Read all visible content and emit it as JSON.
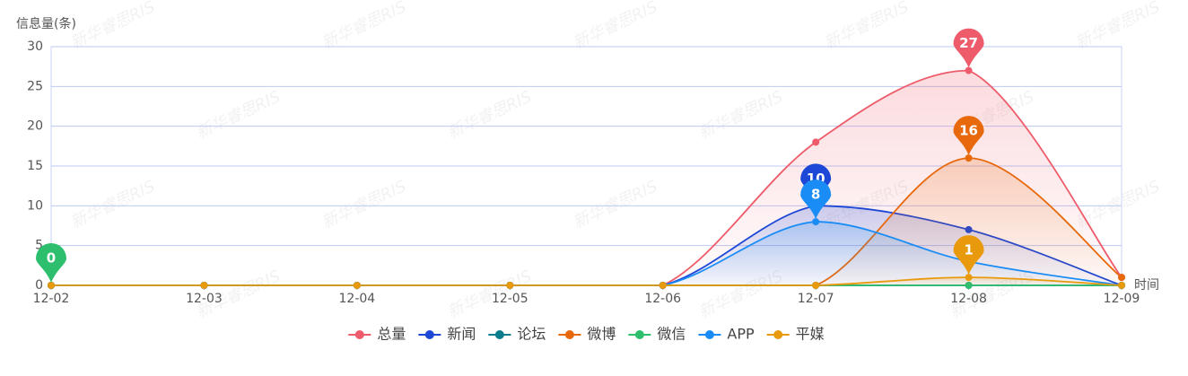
{
  "chart_data": {
    "type": "line",
    "smooth": true,
    "area": true,
    "y_axis_label": "信息量(条)",
    "x_axis_label": "时间",
    "watermark": "新华睿思RIS",
    "categories": [
      "12-02",
      "12-03",
      "12-04",
      "12-05",
      "12-06",
      "12-07",
      "12-08",
      "12-09"
    ],
    "ylim": [
      0,
      30
    ],
    "yticks": [
      0,
      5,
      10,
      15,
      20,
      25,
      30
    ],
    "grid": true,
    "legend": "bottom",
    "series": [
      {
        "name": "总量",
        "color": "#ee5b6a",
        "mark_max": true,
        "values": [
          0,
          0,
          0,
          0,
          0,
          18,
          27,
          1
        ]
      },
      {
        "name": "新闻",
        "color": "#1d47d6",
        "mark_max": true,
        "values": [
          0,
          0,
          0,
          0,
          0,
          10,
          7,
          0
        ]
      },
      {
        "name": "论坛",
        "color": "#0a7c8c",
        "mark_max": false,
        "values": [
          0,
          0,
          0,
          0,
          0,
          0,
          0,
          0
        ]
      },
      {
        "name": "微博",
        "color": "#e8680c",
        "mark_max": true,
        "values": [
          0,
          0,
          0,
          0,
          0,
          0,
          16,
          1
        ]
      },
      {
        "name": "微信",
        "color": "#2dbf6e",
        "mark_max": true,
        "values": [
          0,
          0,
          0,
          0,
          0,
          0,
          0,
          0
        ]
      },
      {
        "name": "APP",
        "color": "#1a8cf5",
        "mark_max": true,
        "values": [
          0,
          0,
          0,
          0,
          0,
          8,
          3,
          0
        ]
      },
      {
        "name": "平媒",
        "color": "#e8990c",
        "mark_max": true,
        "values": [
          0,
          0,
          0,
          0,
          0,
          0,
          1,
          0
        ]
      }
    ]
  }
}
